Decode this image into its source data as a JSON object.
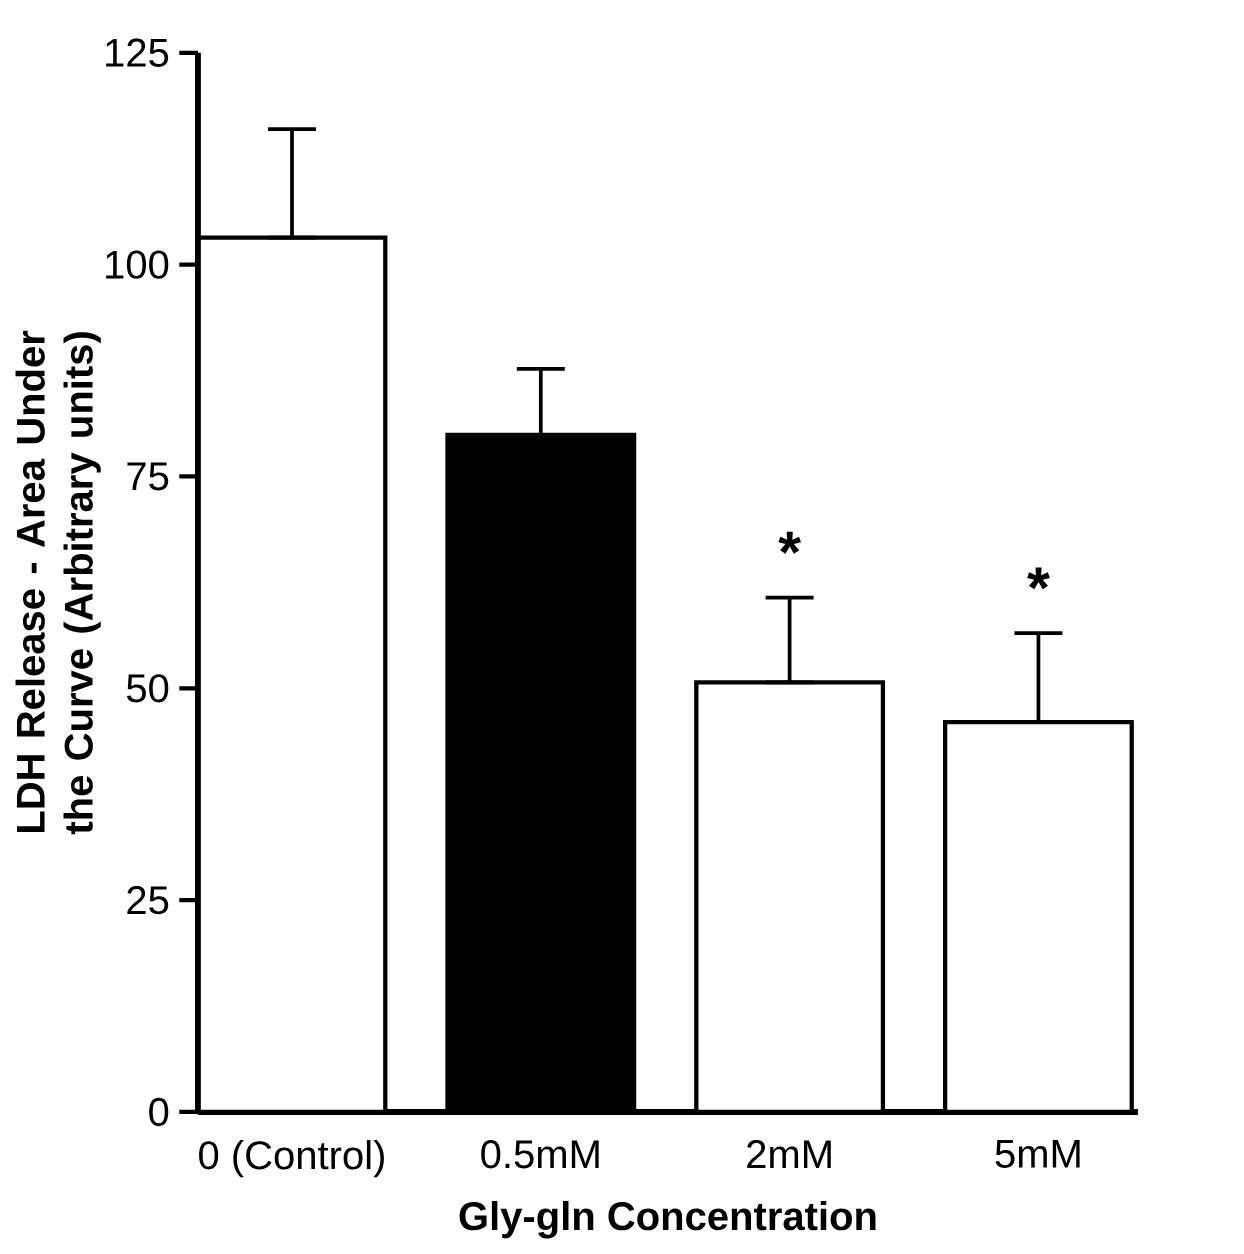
{
  "chart_data": {
    "type": "bar",
    "xlabel": "Gly-gln Concentration",
    "ylabel": "LDH Release - Area Under the Curve (Arbitrary units)",
    "categories": [
      "0 (Control)",
      "0.5mM",
      "2mM",
      "5mM"
    ],
    "values": [
      103.2,
      79.9,
      50.7,
      46.0
    ],
    "colors": [
      "#ffffff",
      "#000000",
      "#ffffff",
      "#ffffff"
    ],
    "errors": [
      [
        103.2,
        116.0
      ],
      [
        79.9,
        87.7
      ],
      [
        50.7,
        60.7
      ],
      [
        46.0,
        56.5
      ]
    ],
    "value_labels": [
      null,
      null,
      "*",
      "*"
    ],
    "ylim": [
      0,
      125
    ],
    "yticks": [
      0,
      25,
      50,
      75,
      100,
      125
    ]
  }
}
